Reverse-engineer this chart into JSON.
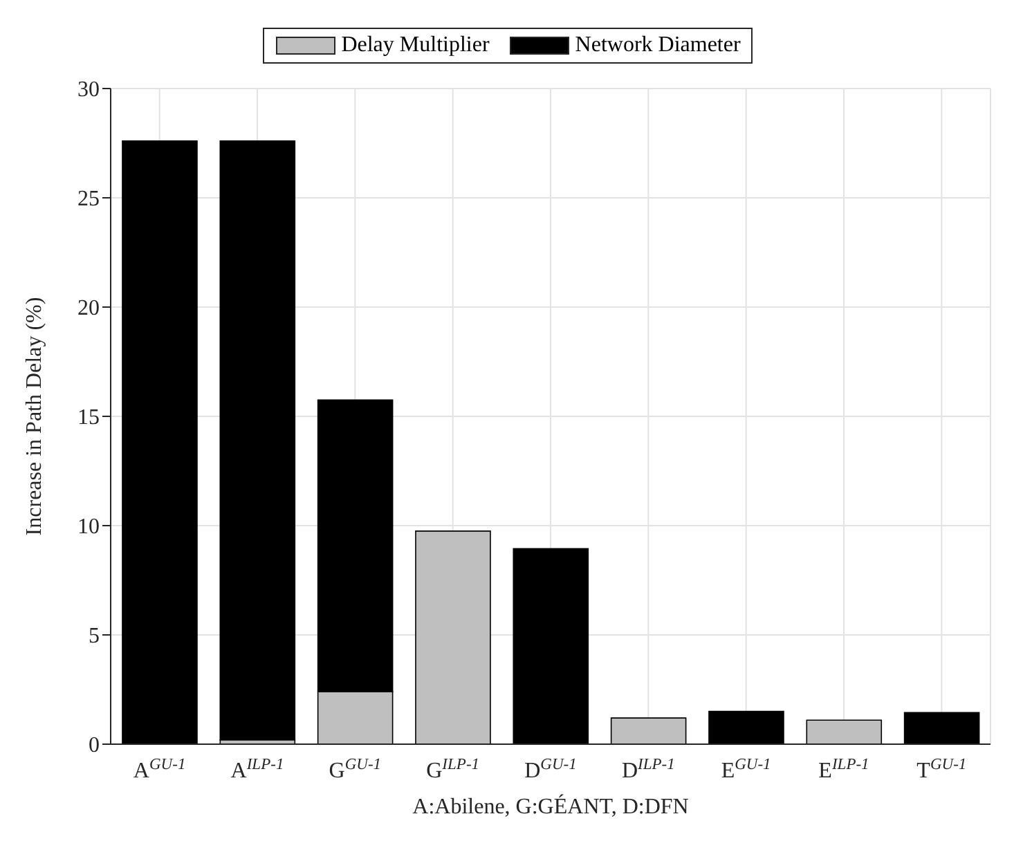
{
  "chart_data": {
    "type": "bar",
    "stacked": true,
    "ylabel": "Increase in Path Delay (%)",
    "xlabel": "A:Abilene, G:GÉANT, D:DFN",
    "categories": [
      "A$^{GU-1}$",
      "A$^{ILP-1}$",
      "G$^{GU-1}$",
      "G$^{ILP-1}$",
      "D$^{GU-1}$",
      "D$^{ILP-1}$",
      "E$^{GU-1}$",
      "E$^{ILP-1}$",
      "T$^{GU-1}$"
    ],
    "series": [
      {
        "name": "Delay Multiplier",
        "color": "#bfbfbf",
        "values": [
          0,
          0.2,
          2.4,
          9.75,
          0,
          1.2,
          0,
          1.1,
          0
        ]
      },
      {
        "name": "Network Diameter",
        "color": "#000000",
        "values": [
          27.6,
          27.4,
          13.35,
          0,
          8.95,
          0,
          1.5,
          0,
          1.45
        ]
      }
    ],
    "ylim": [
      0,
      30
    ],
    "yticks": [
      0,
      5,
      10,
      15,
      20,
      25,
      30
    ],
    "grid": true,
    "legend": "top"
  }
}
